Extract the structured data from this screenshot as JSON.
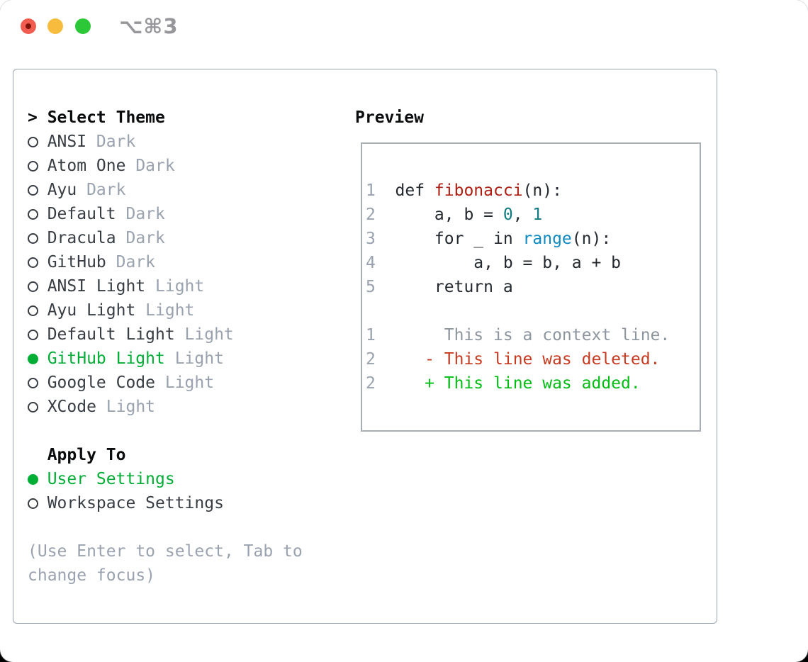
{
  "window": {
    "title": "⌥⌘3"
  },
  "traffic_lights": {
    "close": "red",
    "minimize": "yellow",
    "zoom": "green"
  },
  "theme_list": {
    "caret": ">",
    "title": "Select Theme",
    "items": [
      {
        "name": "ANSI",
        "variant": "Dark",
        "selected": false
      },
      {
        "name": "Atom One",
        "variant": "Dark",
        "selected": false
      },
      {
        "name": "Ayu",
        "variant": "Dark",
        "selected": false
      },
      {
        "name": "Default",
        "variant": "Dark",
        "selected": false
      },
      {
        "name": "Dracula",
        "variant": "Dark",
        "selected": false
      },
      {
        "name": "GitHub",
        "variant": "Dark",
        "selected": false
      },
      {
        "name": "ANSI Light",
        "variant": "Light",
        "selected": false
      },
      {
        "name": "Ayu Light",
        "variant": "Light",
        "selected": false
      },
      {
        "name": "Default Light",
        "variant": "Light",
        "selected": false
      },
      {
        "name": "GitHub Light",
        "variant": "Light",
        "selected": true
      },
      {
        "name": "Google Code",
        "variant": "Light",
        "selected": false
      },
      {
        "name": "XCode",
        "variant": "Light",
        "selected": false
      }
    ]
  },
  "apply_to": {
    "title": "Apply To",
    "options": [
      {
        "name": "User Settings",
        "selected": true
      },
      {
        "name": "Workspace Settings",
        "selected": false
      }
    ]
  },
  "hint": "(Use Enter to select, Tab to change focus)",
  "preview": {
    "title": "Preview",
    "code_lines": [
      {
        "num": "1",
        "segments": [
          {
            "text": "def ",
            "color": "fg"
          },
          {
            "text": "fibonacci",
            "color": "func"
          },
          {
            "text": "(n):",
            "color": "fg"
          }
        ]
      },
      {
        "num": "2",
        "segments": [
          {
            "text": "    a, b = ",
            "color": "fg"
          },
          {
            "text": "0",
            "color": "num"
          },
          {
            "text": ", ",
            "color": "fg"
          },
          {
            "text": "1",
            "color": "num"
          }
        ]
      },
      {
        "num": "3",
        "segments": [
          {
            "text": "    for _ in ",
            "color": "fg"
          },
          {
            "text": "range",
            "color": "builtin"
          },
          {
            "text": "(n):",
            "color": "fg"
          }
        ]
      },
      {
        "num": "4",
        "segments": [
          {
            "text": "        a, b = b, a + b",
            "color": "fg"
          }
        ]
      },
      {
        "num": "5",
        "segments": [
          {
            "text": "    return a",
            "color": "fg"
          }
        ]
      }
    ],
    "diff_lines": [
      {
        "num": "1",
        "marker": "",
        "text": "This is a context line.",
        "type": "context"
      },
      {
        "num": "2",
        "marker": "-",
        "text": "This line was deleted.",
        "type": "deleted"
      },
      {
        "num": "2",
        "marker": "+",
        "text": "This line was added.",
        "type": "added"
      }
    ]
  },
  "colors": {
    "fg": "#24292f",
    "fg_strong": "#0a0c0e",
    "fg_item": "#383d44",
    "muted": "#99a2ae",
    "context_gray": "#8d959e",
    "accent": "#00ad35",
    "added": "#00bd13",
    "deleted": "#c63a20",
    "func": "#ae1e12",
    "num": "#127a82",
    "builtin": "#0e8ac2",
    "border": "#9aa3af",
    "box_border": "#a9aeb6",
    "tl_red": "#f25b50",
    "tl_red_dot": "#7e1408",
    "tl_yellow": "#f7bc3d",
    "tl_green": "#2dc837",
    "title_gray": "#97979b"
  }
}
